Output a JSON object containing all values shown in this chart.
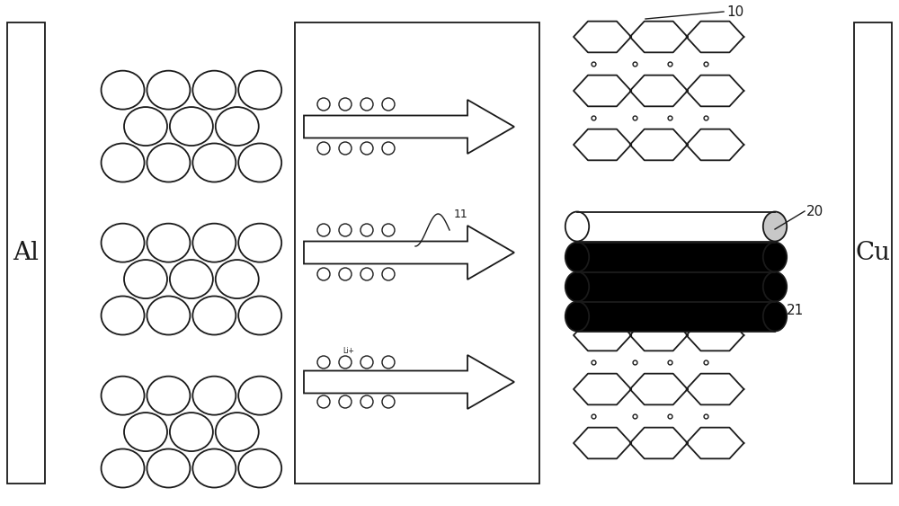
{
  "fig_width": 10.0,
  "fig_height": 5.63,
  "bg_color": "#ffffff",
  "line_color": "#1a1a1a",
  "Al_label": "Al",
  "Cu_label": "Cu",
  "label_10": "10",
  "label_11": "11",
  "label_20": "20",
  "label_21": "21",
  "label_li": "Li+"
}
